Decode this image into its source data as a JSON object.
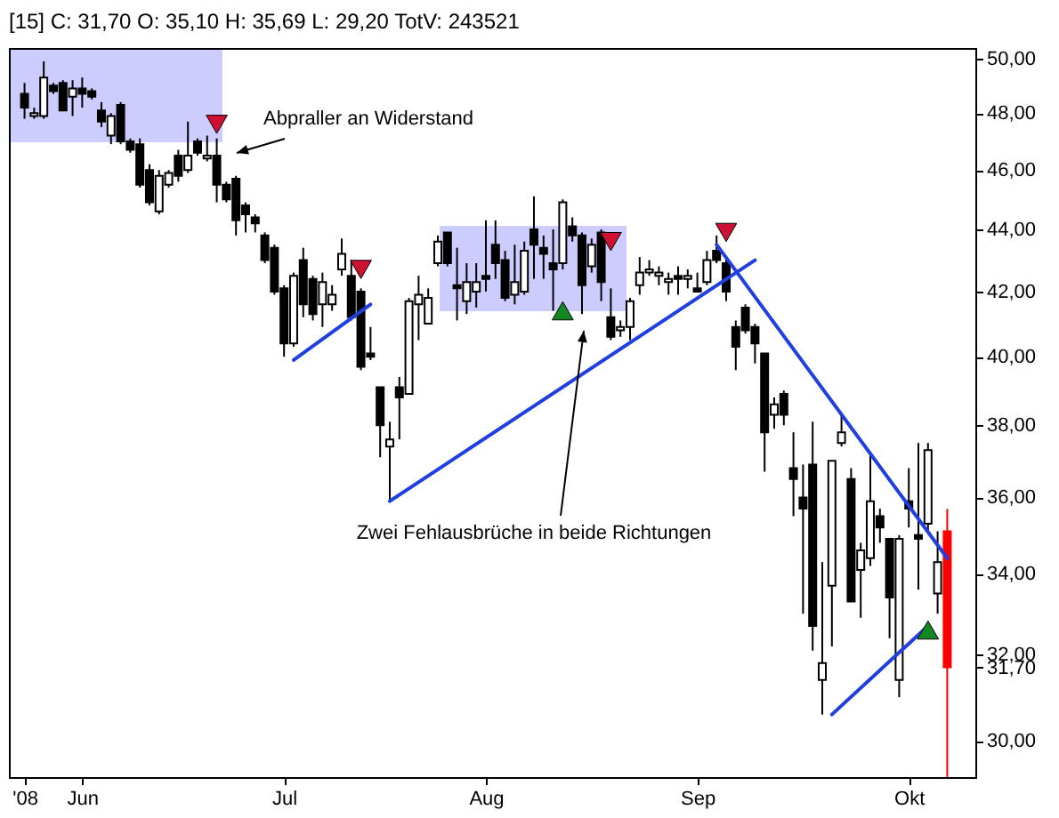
{
  "chart_data": {
    "type": "candlestick",
    "title": "[15] C: 31,70 O: 35,10 H: 35,69 L: 29,20 TotV: 243521",
    "categories": [
      "'08",
      null,
      null,
      null,
      null,
      null,
      "Jun",
      null,
      null,
      null,
      null,
      null,
      null,
      null,
      null,
      null,
      null,
      null,
      null,
      null,
      null,
      null,
      null,
      null,
      null,
      null,
      null,
      "Jul",
      null,
      null,
      null,
      null,
      null,
      null,
      null,
      null,
      null,
      null,
      null,
      null,
      null,
      null,
      null,
      null,
      null,
      null,
      null,
      null,
      "Aug",
      null,
      null,
      null,
      null,
      null,
      null,
      null,
      null,
      null,
      null,
      null,
      null,
      null,
      null,
      null,
      null,
      null,
      null,
      null,
      null,
      null,
      "Sep",
      null,
      null,
      null,
      null,
      null,
      null,
      null,
      null,
      null,
      null,
      null,
      null,
      null,
      null,
      null,
      null,
      null,
      null,
      null,
      null,
      null,
      "Okt",
      null,
      null,
      null,
      null
    ],
    "ohlc": [
      [
        48.7,
        49.1,
        47.8,
        48.2
      ],
      [
        47.9,
        48.2,
        47.8,
        48.0
      ],
      [
        47.9,
        49.9,
        47.8,
        49.3
      ],
      [
        49.0,
        49.1,
        48.7,
        48.8
      ],
      [
        49.1,
        49.2,
        48.1,
        48.1
      ],
      [
        48.6,
        49.2,
        47.9,
        48.9
      ],
      [
        48.9,
        49.3,
        48.2,
        48.7
      ],
      [
        48.8,
        48.9,
        48.5,
        48.6
      ],
      [
        48.1,
        48.4,
        47.5,
        47.7
      ],
      [
        47.2,
        48.0,
        46.9,
        47.9
      ],
      [
        48.3,
        48.4,
        46.9,
        47.0
      ],
      [
        47.0,
        47.1,
        46.6,
        46.7
      ],
      [
        46.9,
        47.1,
        45.4,
        45.5
      ],
      [
        46.0,
        46.2,
        44.8,
        44.9
      ],
      [
        44.6,
        46.0,
        44.5,
        45.8
      ],
      [
        45.5,
        46.0,
        45.4,
        45.9
      ],
      [
        46.5,
        46.7,
        45.6,
        45.8
      ],
      [
        46.0,
        47.7,
        45.9,
        46.5
      ],
      [
        47.0,
        47.1,
        46.5,
        46.6
      ],
      [
        46.4,
        47.2,
        46.3,
        46.5
      ],
      [
        46.5,
        47.1,
        44.9,
        45.5
      ],
      [
        45.5,
        45.6,
        44.9,
        45.0
      ],
      [
        45.7,
        45.8,
        43.8,
        44.3
      ],
      [
        44.8,
        44.9,
        43.9,
        44.5
      ],
      [
        44.4,
        44.5,
        43.9,
        44.2
      ],
      [
        43.8,
        43.9,
        42.9,
        43.0
      ],
      [
        43.4,
        43.5,
        41.9,
        42.0
      ],
      [
        42.1,
        42.2,
        40.0,
        40.4
      ],
      [
        40.4,
        42.6,
        40.3,
        42.5
      ],
      [
        43.0,
        43.4,
        41.2,
        41.6
      ],
      [
        42.4,
        42.5,
        41.1,
        41.3
      ],
      [
        41.6,
        42.6,
        40.9,
        42.3
      ],
      [
        41.6,
        42.2,
        41.4,
        41.9
      ],
      [
        42.7,
        43.7,
        42.5,
        43.2
      ],
      [
        42.5,
        43.0,
        41.1,
        41.2
      ],
      [
        42.0,
        42.1,
        39.6,
        39.7
      ],
      [
        40.1,
        40.9,
        39.9,
        40.0
      ],
      [
        39.1,
        39.1,
        37.1,
        38.0
      ],
      [
        37.4,
        38.1,
        35.9,
        37.6
      ],
      [
        39.1,
        39.4,
        37.6,
        38.8
      ],
      [
        38.9,
        41.8,
        38.9,
        41.7
      ],
      [
        41.6,
        42.5,
        40.5,
        41.9
      ],
      [
        41.0,
        42.1,
        41.0,
        41.8
      ],
      [
        42.9,
        43.8,
        42.8,
        43.6
      ],
      [
        43.9,
        43.9,
        42.8,
        42.9
      ],
      [
        42.2,
        43.4,
        41.1,
        42.1
      ],
      [
        41.7,
        42.9,
        41.3,
        42.3
      ],
      [
        42.0,
        42.9,
        41.5,
        42.3
      ],
      [
        42.5,
        44.3,
        42.0,
        42.4
      ],
      [
        43.5,
        44.3,
        42.4,
        42.9
      ],
      [
        43.0,
        43.3,
        41.7,
        41.8
      ],
      [
        41.9,
        43.5,
        41.6,
        42.3
      ],
      [
        42.0,
        43.6,
        41.9,
        43.3
      ],
      [
        44.0,
        45.1,
        42.4,
        43.5
      ],
      [
        43.4,
        43.8,
        42.4,
        43.2
      ],
      [
        42.9,
        44.0,
        41.4,
        42.7
      ],
      [
        42.9,
        45.0,
        42.7,
        44.9
      ],
      [
        44.1,
        44.4,
        43.6,
        43.8
      ],
      [
        43.8,
        43.9,
        41.3,
        42.2
      ],
      [
        42.8,
        43.7,
        42.6,
        43.5
      ],
      [
        43.9,
        44.0,
        41.7,
        42.3
      ],
      [
        41.2,
        42.1,
        40.5,
        40.6
      ],
      [
        40.8,
        41.1,
        40.6,
        40.9
      ],
      [
        40.9,
        41.8,
        40.5,
        41.7
      ],
      [
        42.2,
        43.1,
        41.9,
        42.6
      ],
      [
        42.6,
        43.0,
        42.5,
        42.7
      ],
      [
        42.5,
        42.8,
        42.2,
        42.6
      ],
      [
        42.3,
        42.6,
        41.9,
        42.4
      ],
      [
        42.5,
        42.8,
        41.9,
        42.4
      ],
      [
        42.4,
        42.7,
        42.1,
        42.5
      ],
      [
        42.1,
        42.6,
        42.0,
        42.0
      ],
      [
        42.3,
        43.3,
        42.2,
        43.0
      ],
      [
        43.3,
        43.8,
        42.9,
        43.0
      ],
      [
        42.9,
        43.1,
        41.7,
        42.0
      ],
      [
        40.9,
        41.1,
        39.6,
        40.3
      ],
      [
        41.5,
        41.6,
        40.7,
        40.8
      ],
      [
        40.9,
        41.0,
        39.8,
        40.4
      ],
      [
        40.1,
        40.1,
        36.7,
        37.8
      ],
      [
        38.3,
        38.8,
        37.9,
        38.6
      ],
      [
        38.9,
        39.0,
        38.0,
        38.3
      ],
      [
        36.8,
        37.8,
        35.5,
        36.5
      ],
      [
        36.0,
        36.9,
        33.0,
        35.7
      ],
      [
        36.9,
        38.1,
        32.1,
        32.7
      ],
      [
        31.4,
        34.3,
        30.6,
        31.8
      ],
      [
        33.7,
        37.0,
        32.2,
        37.0
      ],
      [
        37.5,
        38.3,
        37.4,
        37.8
      ],
      [
        36.5,
        36.8,
        33.3,
        33.3
      ],
      [
        34.1,
        34.8,
        32.9,
        34.6
      ],
      [
        34.4,
        37.2,
        34.2,
        35.9
      ],
      [
        35.5,
        35.7,
        34.8,
        35.2
      ],
      [
        34.9,
        34.9,
        32.4,
        33.4
      ],
      [
        31.4,
        35.0,
        31.0,
        34.9
      ],
      [
        35.9,
        36.8,
        35.2,
        35.7
      ],
      [
        35.0,
        37.5,
        33.6,
        34.9
      ],
      [
        35.3,
        37.5,
        35.1,
        37.3
      ],
      [
        33.5,
        35.1,
        33.0,
        34.3
      ],
      [
        35.1,
        35.69,
        29.2,
        31.7
      ]
    ],
    "colors": [
      "#000000",
      "#ffffff",
      "#ffffff",
      "#000000",
      "#000000",
      "#ffffff",
      "#000000",
      "#000000",
      "#000000",
      "#ffffff",
      "#000000",
      "#000000",
      "#000000",
      "#000000",
      "#ffffff",
      "#ffffff",
      "#000000",
      "#ffffff",
      "#000000",
      "#ffffff",
      "#000000",
      "#000000",
      "#000000",
      "#000000",
      "#000000",
      "#000000",
      "#000000",
      "#000000",
      "#ffffff",
      "#000000",
      "#000000",
      "#ffffff",
      "#ffffff",
      "#ffffff",
      "#000000",
      "#000000",
      "#000000",
      "#000000",
      "#ffffff",
      "#000000",
      "#ffffff",
      "#ffffff",
      "#ffffff",
      "#ffffff",
      "#000000",
      "#000000",
      "#ffffff",
      "#ffffff",
      "#000000",
      "#000000",
      "#000000",
      "#ffffff",
      "#ffffff",
      "#000000",
      "#000000",
      "#000000",
      "#ffffff",
      "#000000",
      "#000000",
      "#ffffff",
      "#000000",
      "#000000",
      "#ffffff",
      "#ffffff",
      "#ffffff",
      "#ffffff",
      "#ffffff",
      "#ffffff",
      "#000000",
      "#ffffff",
      "#000000",
      "#ffffff",
      "#000000",
      "#000000",
      "#000000",
      "#000000",
      "#000000",
      "#000000",
      "#ffffff",
      "#000000",
      "#000000",
      "#000000",
      "#000000",
      "#ffffff",
      "#ffffff",
      "#ffffff",
      "#000000",
      "#ffffff",
      "#ffffff",
      "#000000",
      "#000000",
      "#ffffff",
      "#000000",
      "#000000",
      "#ffffff",
      "#ffffff",
      "#ff0000"
    ],
    "series": [
      {
        "type": "line",
        "color": "#1f3fe0",
        "values": [
          null,
          null,
          null,
          null,
          null,
          null,
          null,
          null,
          null,
          null,
          null,
          null,
          null,
          null,
          null,
          null,
          null,
          null,
          null,
          null,
          null,
          null,
          null,
          null,
          null,
          null,
          null,
          null,
          39.9,
          null,
          null,
          null,
          null,
          null,
          null,
          null,
          41.6,
          null,
          null,
          null,
          null,
          null,
          null,
          null,
          null,
          null,
          null,
          null,
          null,
          null,
          null,
          null,
          null,
          null,
          null,
          null,
          null,
          null,
          null,
          null,
          null,
          null,
          null,
          null,
          null,
          null,
          null,
          null,
          null,
          null,
          null,
          null,
          null,
          null,
          null,
          null,
          null,
          null,
          null,
          null,
          null,
          null,
          null,
          null,
          null,
          null,
          null,
          null,
          null,
          null,
          null,
          null,
          null,
          null,
          null,
          null,
          null
        ]
      },
      {
        "type": "line",
        "color": "#1f3fe0",
        "values": [
          null,
          null,
          null,
          null,
          null,
          null,
          null,
          null,
          null,
          null,
          null,
          null,
          null,
          null,
          null,
          null,
          null,
          null,
          null,
          null,
          null,
          null,
          null,
          null,
          null,
          null,
          null,
          null,
          null,
          null,
          null,
          null,
          null,
          null,
          null,
          null,
          null,
          null,
          35.9,
          null,
          null,
          null,
          null,
          null,
          null,
          null,
          null,
          null,
          null,
          null,
          null,
          null,
          null,
          null,
          null,
          null,
          null,
          null,
          null,
          null,
          null,
          null,
          null,
          null,
          null,
          null,
          null,
          null,
          null,
          null,
          null,
          null,
          null,
          null,
          null,
          null,
          43.0,
          null,
          null,
          null,
          null,
          null,
          null,
          null,
          null,
          null,
          null,
          null,
          null,
          null,
          null,
          null,
          null,
          null,
          null,
          null,
          null
        ]
      },
      {
        "type": "line",
        "color": "#1f3fe0",
        "values": [
          null,
          null,
          null,
          null,
          null,
          null,
          null,
          null,
          null,
          null,
          null,
          null,
          null,
          null,
          null,
          null,
          null,
          null,
          null,
          null,
          null,
          null,
          null,
          null,
          null,
          null,
          null,
          null,
          null,
          null,
          null,
          null,
          null,
          null,
          null,
          null,
          null,
          null,
          null,
          null,
          null,
          null,
          null,
          null,
          null,
          null,
          null,
          null,
          null,
          null,
          null,
          null,
          null,
          null,
          null,
          null,
          null,
          null,
          null,
          null,
          null,
          null,
          null,
          null,
          null,
          null,
          null,
          null,
          null,
          null,
          null,
          null,
          43.5,
          null,
          null,
          null,
          null,
          null,
          null,
          null,
          null,
          null,
          null,
          null,
          null,
          null,
          null,
          null,
          null,
          null,
          null,
          null,
          null,
          null,
          null,
          null,
          34.4
        ]
      },
      {
        "type": "line",
        "color": "#1f3fe0",
        "values": [
          null,
          null,
          null,
          null,
          null,
          null,
          null,
          null,
          null,
          null,
          null,
          null,
          null,
          null,
          null,
          null,
          null,
          null,
          null,
          null,
          null,
          null,
          null,
          null,
          null,
          null,
          null,
          null,
          null,
          null,
          null,
          null,
          null,
          null,
          null,
          null,
          null,
          null,
          null,
          null,
          null,
          null,
          null,
          null,
          null,
          null,
          null,
          null,
          null,
          null,
          null,
          null,
          null,
          null,
          null,
          null,
          null,
          null,
          null,
          null,
          null,
          null,
          null,
          null,
          null,
          null,
          null,
          null,
          null,
          null,
          null,
          null,
          null,
          null,
          null,
          null,
          null,
          null,
          null,
          null,
          null,
          null,
          null,
          null,
          30.6,
          null,
          null,
          null,
          null,
          null,
          null,
          null,
          null,
          null,
          32.7,
          null,
          null
        ]
      },
      {
        "type": "scatter",
        "color": "#cc1133",
        "marker": "triangle-down",
        "values": [
          null,
          null,
          null,
          null,
          null,
          null,
          null,
          null,
          null,
          null,
          null,
          null,
          null,
          null,
          null,
          null,
          null,
          null,
          null,
          null,
          47.6,
          null,
          null,
          null,
          null,
          null,
          null,
          null,
          null,
          null,
          null,
          null,
          null,
          null,
          null,
          42.7,
          null,
          null,
          null,
          null,
          null,
          null,
          null,
          null,
          null,
          null,
          null,
          null,
          null,
          null,
          null,
          null,
          null,
          null,
          null,
          null,
          null,
          null,
          null,
          null,
          null,
          43.6,
          null,
          null,
          null,
          null,
          null,
          null,
          null,
          null,
          null,
          null,
          null,
          43.9,
          null,
          null,
          null,
          null,
          null,
          null,
          null,
          null,
          null,
          null,
          null,
          null,
          null,
          null,
          null,
          null,
          null,
          null,
          null,
          null,
          null,
          null,
          null
        ]
      },
      {
        "type": "scatter",
        "color": "#118822",
        "marker": "triangle",
        "values": [
          null,
          null,
          null,
          null,
          null,
          null,
          null,
          null,
          null,
          null,
          null,
          null,
          null,
          null,
          null,
          null,
          null,
          null,
          null,
          null,
          null,
          null,
          null,
          null,
          null,
          null,
          null,
          null,
          null,
          null,
          null,
          null,
          null,
          null,
          null,
          null,
          null,
          null,
          null,
          null,
          null,
          null,
          null,
          null,
          null,
          null,
          null,
          null,
          null,
          null,
          null,
          null,
          null,
          null,
          null,
          null,
          41.4,
          null,
          null,
          null,
          null,
          null,
          null,
          null,
          null,
          null,
          null,
          null,
          null,
          null,
          null,
          null,
          null,
          null,
          null,
          null,
          null,
          null,
          null,
          null,
          null,
          null,
          null,
          null,
          null,
          null,
          null,
          null,
          null,
          null,
          null,
          null,
          null,
          null,
          32.6,
          null,
          null
        ]
      }
    ],
    "annotations": [
      "Abpraller an Widerstand",
      "Zwei Fehlausbrüche in beide Richtungen"
    ],
    "ylim": [
      29.2,
      50.4
    ],
    "yticks": [
      {
        "value": 30,
        "label": "30,00"
      },
      {
        "value": 32,
        "label": "32,00"
      },
      {
        "value": 34,
        "label": "34,00"
      },
      {
        "value": 36,
        "label": "36,00"
      },
      {
        "value": 38,
        "label": "38,00"
      },
      {
        "value": 40,
        "label": "40,00"
      },
      {
        "value": 42,
        "label": "42,00"
      },
      {
        "value": 44,
        "label": "44,00"
      },
      {
        "value": 46,
        "label": "46,00"
      },
      {
        "value": 48,
        "label": "48,00"
      },
      {
        "value": 50,
        "label": "50,00"
      },
      {
        "value": 31.7,
        "label": "31,70"
      }
    ],
    "log": "y",
    "grid": false
  }
}
